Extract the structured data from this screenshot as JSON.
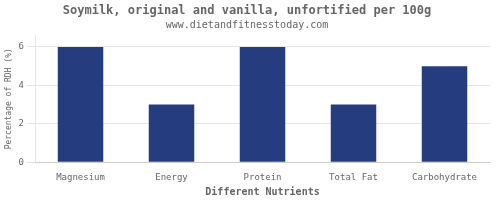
{
  "chart_data": {
    "type": "bar",
    "title": "Soymilk, original and vanilla, unfortified per 100g",
    "subtitle": "www.dietandfitnesstoday.com",
    "xlabel": "Different Nutrients",
    "ylabel": "Percentage of RDH (%)",
    "categories": [
      "Magnesium",
      "Energy",
      "Protein",
      "Total Fat",
      "Carbohydrate"
    ],
    "values": [
      6.0,
      3.0,
      6.0,
      3.0,
      5.0
    ],
    "color": "#253d7f",
    "ylim": [
      0,
      6.6
    ],
    "yticks": [
      0,
      2,
      4,
      6
    ],
    "grid": true
  }
}
